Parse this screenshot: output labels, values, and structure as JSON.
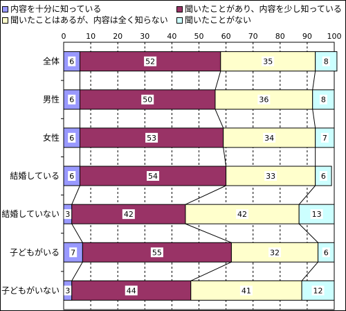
{
  "chart_data": {
    "type": "bar",
    "orientation": "horizontal",
    "stacked": true,
    "title": "",
    "xlabel": "",
    "ylabel": "",
    "xlim": [
      0,
      100
    ],
    "x_ticks": [
      "0",
      "10",
      "20",
      "30",
      "40",
      "50",
      "60",
      "70",
      "80",
      "90",
      "100"
    ],
    "x_tick_values": [
      0,
      10,
      20,
      30,
      40,
      50,
      60,
      70,
      80,
      90,
      100
    ],
    "grid": "vertical dashed",
    "legend_position": "top",
    "series_connector_lines": true,
    "categories": [
      "全体",
      "男性",
      "女性",
      "結婚している",
      "結婚していない",
      "子どもがいる",
      "子どもがいない"
    ],
    "series": [
      {
        "name": "内容を十分に知っている",
        "color": "#9999ff",
        "values": [
          6,
          6,
          6,
          6,
          3,
          7,
          3
        ]
      },
      {
        "name": "聞いたことがあり、内容を少し知っている",
        "color": "#993366",
        "values": [
          52,
          50,
          53,
          54,
          42,
          55,
          44
        ]
      },
      {
        "name": "聞いたことはあるが、内容は全く知らない",
        "color": "#ffffcc",
        "values": [
          35,
          36,
          34,
          33,
          42,
          32,
          41
        ]
      },
      {
        "name": "聞いたことがない",
        "color": "#ccffff",
        "values": [
          8,
          8,
          7,
          6,
          13,
          6,
          12
        ]
      }
    ]
  }
}
